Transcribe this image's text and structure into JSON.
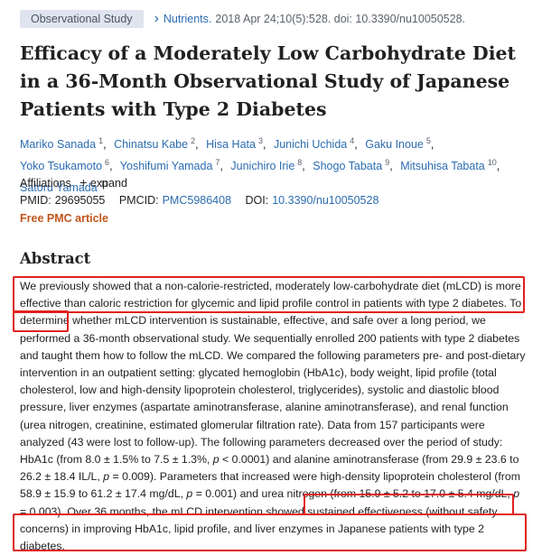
{
  "header": {
    "badge": "Observational Study",
    "journal": "Nutrients.",
    "citation": "2018 Apr 24;10(5):528. doi: 10.3390/nu10050528."
  },
  "title": "Efficacy of a Moderately Low Carbohydrate Diet in a 36-Month Observational Study of Japanese Patients with Type 2 Diabetes",
  "authors": [
    {
      "name": "Mariko Sanada",
      "sup": "1"
    },
    {
      "name": "Chinatsu Kabe",
      "sup": "2"
    },
    {
      "name": "Hisa Hata",
      "sup": "3"
    },
    {
      "name": "Junichi Uchida",
      "sup": "4"
    },
    {
      "name": "Gaku Inoue",
      "sup": "5"
    },
    {
      "name": "Yoko Tsukamoto",
      "sup": "6"
    },
    {
      "name": "Yoshifumi Yamada",
      "sup": "7"
    },
    {
      "name": "Junichiro Irie",
      "sup": "8"
    },
    {
      "name": "Shogo Tabata",
      "sup": "9"
    },
    {
      "name": "Mitsuhisa Tabata",
      "sup": "10"
    },
    {
      "name": "Satoru Yamada",
      "sup": "11"
    }
  ],
  "affiliations": {
    "label": "Affiliations",
    "expand": "expand"
  },
  "ids": {
    "pmid_label": "PMID:",
    "pmid": "29695055",
    "pmcid_label": "PMCID:",
    "pmcid": "PMC5986408",
    "doi_label": "DOI:",
    "doi": "10.3390/nu10050528"
  },
  "free_pmc": "Free PMC article",
  "abstract": {
    "heading": "Abstract",
    "s1": "We previously showed that a non-calorie-restricted, moderately low-carbohydrate diet (mLCD) is more effective than caloric restriction for glycemic and lipid profile control in patients with type 2 diabetes.",
    "s2": " To determine whether mLCD intervention is sustainable, effective, and safe over a long period, we performed a 36-month observational study. We sequentially enrolled 200 patients with type 2 diabetes and taught them how to follow the mLCD. We compared the following parameters pre- and post-dietary intervention in an outpatient setting: glycated hemoglobin (HbA1c), body weight, lipid profile (total cholesterol, low and high-density lipoprotein cholesterol, triglycerides), systolic and diastolic blood pressure, liver enzymes (aspartate aminotransferase, alanine aminotransferase), and renal function (urea nitrogen, creatinine, estimated glomerular filtration rate). Data from 157 participants were analyzed (43 were lost to follow-up). The following parameters decreased over the period of study: HbA1c (from 8.0 ± 1.5% to 7.5 ± 1.3%, ",
    "p1_letter": "p",
    "p1_val": " < 0.0001) and alanine aminotransferase (from 29.9 ± 23.6 to 26.2 ± 18.4 IL/L, ",
    "p2_letter": "p",
    "p2_val": " = 0.009). Parameters that increased were high-density lipoprotein cholesterol (from 58.9 ± 15.9 to 61.2 ± 17.4 mg/dL, ",
    "p3_letter": "p",
    "p3_val": " = 0.001) and urea nitrogen (from 15.9 ± 5.2 to 17.0 ± 5.4 mg/dL, ",
    "p4_letter": "p",
    "p4_val": " = 0.003). ",
    "s3": "Over 36 months, the mLCD intervention showed sustained effectiveness (without safety concerns) in improving HbA1c, lipid profile, and liver enzymes in Japanese patients with type 2 diabetes."
  }
}
